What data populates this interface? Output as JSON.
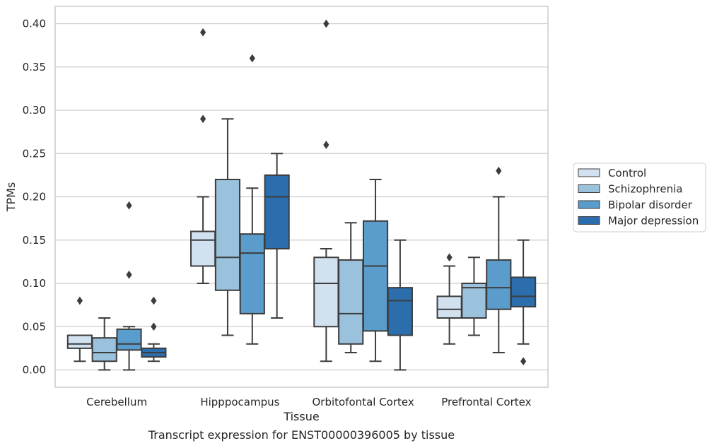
{
  "chart_data": {
    "type": "box",
    "title": "",
    "xlabel": "Tissue",
    "ylabel": "TPMs",
    "ylim": [
      -0.02,
      0.42
    ],
    "yticks": [
      "0.00",
      "0.05",
      "0.10",
      "0.15",
      "0.20",
      "0.25",
      "0.30",
      "0.35",
      "0.40"
    ],
    "grid": "horizontal",
    "legend_position": "right",
    "categories": [
      "Cerebellum",
      "Hipppocampus",
      "Orbitofontal Cortex",
      "Prefrontal Cortex"
    ],
    "series": [
      {
        "name": "Control",
        "color": "#d2e1f0",
        "boxes": [
          {
            "whisker_low": 0.01,
            "q1": 0.025,
            "median": 0.03,
            "q3": 0.04,
            "whisker_high": 0.04,
            "outliers": [
              0.08
            ]
          },
          {
            "whisker_low": 0.1,
            "q1": 0.12,
            "median": 0.15,
            "q3": 0.16,
            "whisker_high": 0.2,
            "outliers": [
              0.29,
              0.39
            ]
          },
          {
            "whisker_low": 0.01,
            "q1": 0.05,
            "median": 0.1,
            "q3": 0.13,
            "whisker_high": 0.14,
            "outliers": [
              0.26,
              0.4
            ]
          },
          {
            "whisker_low": 0.03,
            "q1": 0.06,
            "median": 0.07,
            "q3": 0.085,
            "whisker_high": 0.12,
            "outliers": [
              0.13
            ]
          }
        ]
      },
      {
        "name": "Schizophrenia",
        "color": "#9ac2dc",
        "boxes": [
          {
            "whisker_low": 0.0,
            "q1": 0.01,
            "median": 0.02,
            "q3": 0.037,
            "whisker_high": 0.06,
            "outliers": []
          },
          {
            "whisker_low": 0.04,
            "q1": 0.092,
            "median": 0.13,
            "q3": 0.22,
            "whisker_high": 0.29,
            "outliers": []
          },
          {
            "whisker_low": 0.02,
            "q1": 0.03,
            "median": 0.065,
            "q3": 0.127,
            "whisker_high": 0.17,
            "outliers": []
          },
          {
            "whisker_low": 0.04,
            "q1": 0.06,
            "median": 0.095,
            "q3": 0.1,
            "whisker_high": 0.13,
            "outliers": []
          }
        ]
      },
      {
        "name": "Bipolar disorder",
        "color": "#5a9ccb",
        "boxes": [
          {
            "whisker_low": 0.0,
            "q1": 0.023,
            "median": 0.03,
            "q3": 0.047,
            "whisker_high": 0.05,
            "outliers": [
              0.11,
              0.19
            ]
          },
          {
            "whisker_low": 0.03,
            "q1": 0.065,
            "median": 0.135,
            "q3": 0.157,
            "whisker_high": 0.21,
            "outliers": [
              0.36
            ]
          },
          {
            "whisker_low": 0.01,
            "q1": 0.045,
            "median": 0.12,
            "q3": 0.172,
            "whisker_high": 0.22,
            "outliers": []
          },
          {
            "whisker_low": 0.02,
            "q1": 0.07,
            "median": 0.095,
            "q3": 0.127,
            "whisker_high": 0.2,
            "outliers": [
              0.23
            ]
          }
        ]
      },
      {
        "name": "Major depression",
        "color": "#2c6ead",
        "boxes": [
          {
            "whisker_low": 0.01,
            "q1": 0.015,
            "median": 0.02,
            "q3": 0.025,
            "whisker_high": 0.03,
            "outliers": [
              0.05,
              0.08
            ]
          },
          {
            "whisker_low": 0.06,
            "q1": 0.14,
            "median": 0.2,
            "q3": 0.225,
            "whisker_high": 0.25,
            "outliers": []
          },
          {
            "whisker_low": 0.0,
            "q1": 0.04,
            "median": 0.08,
            "q3": 0.095,
            "whisker_high": 0.15,
            "outliers": []
          },
          {
            "whisker_low": 0.03,
            "q1": 0.073,
            "median": 0.085,
            "q3": 0.107,
            "whisker_high": 0.15,
            "outliers": [
              0.01
            ]
          }
        ]
      }
    ]
  },
  "caption": "Transcript expression for ENST00000396005 by tissue"
}
